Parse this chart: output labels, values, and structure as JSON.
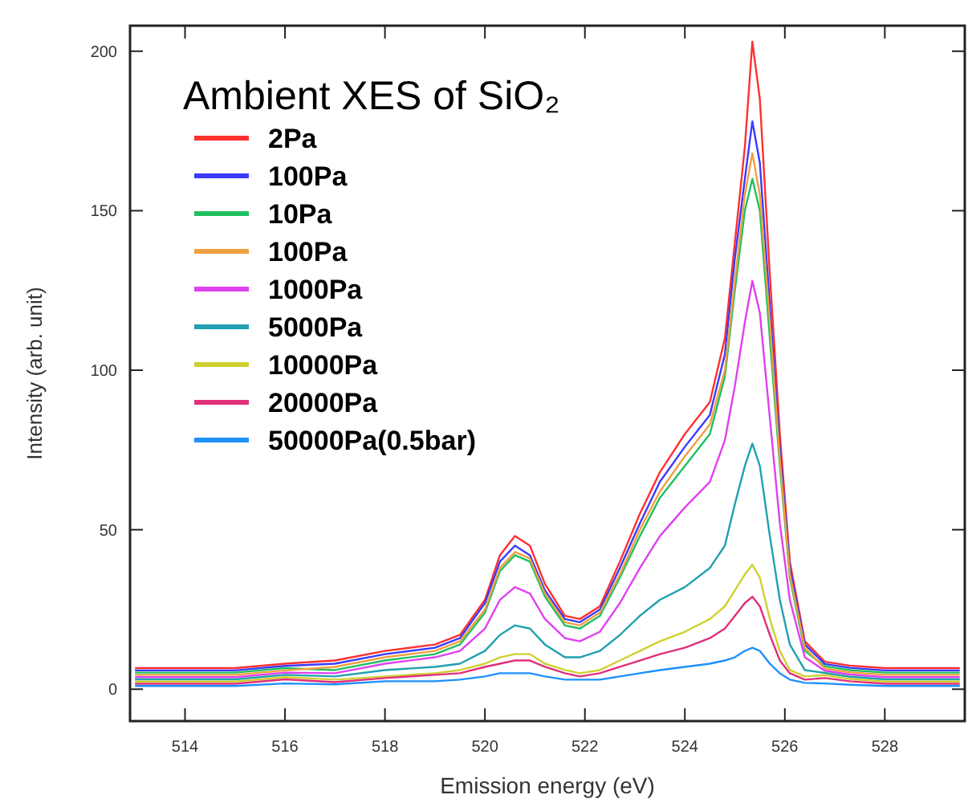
{
  "chart_data": {
    "type": "line",
    "title": "Ambient XES of SiO₂",
    "xlabel": "Emission energy (eV)",
    "ylabel": "Intensity (arb. unit)",
    "x": [
      513,
      514,
      515,
      516,
      517,
      518,
      519,
      519.5,
      520,
      520.3,
      520.6,
      520.9,
      521.2,
      521.6,
      521.9,
      522.3,
      522.7,
      523.1,
      523.5,
      524,
      524.5,
      524.8,
      525,
      525.2,
      525.35,
      525.5,
      525.7,
      525.9,
      526.1,
      526.4,
      526.8,
      527.3,
      528,
      529.5
    ],
    "xlim": [
      512.9,
      529.6
    ],
    "xticks": [
      514,
      516,
      518,
      520,
      522,
      524,
      526,
      528
    ],
    "ylim": [
      -10,
      208
    ],
    "yticks": [
      0,
      50,
      100,
      150,
      200
    ],
    "legend": "top left",
    "grid": false,
    "marker": "none",
    "line_style": "solid",
    "series": [
      {
        "name": "2Pa",
        "color": "#ff3030",
        "values": [
          6.6,
          6.6,
          6.6,
          8,
          9,
          12,
          14,
          17,
          28,
          42,
          48,
          45,
          33,
          23,
          22,
          26,
          40,
          55,
          68,
          80,
          90,
          110,
          140,
          170,
          203,
          185,
          130,
          80,
          40,
          15,
          8.6,
          7.4,
          6.6,
          6.6
        ]
      },
      {
        "name": "100Pa",
        "color": "#3a3aff",
        "values": [
          5.9,
          5.9,
          5.9,
          7.3,
          8,
          11,
          13,
          16,
          27,
          40,
          45,
          42,
          31,
          22,
          21,
          25,
          38,
          52,
          65,
          76,
          86,
          105,
          135,
          160,
          178,
          165,
          120,
          75,
          38,
          14,
          7.9,
          6.7,
          5.9,
          5.9
        ]
      },
      {
        "name": "10Pa",
        "color": "#20c060",
        "values": [
          5.2,
          5.2,
          5.2,
          6.6,
          6,
          9,
          11,
          14,
          24,
          37,
          42,
          40,
          29,
          20,
          19,
          23,
          35,
          48,
          60,
          70,
          80,
          98,
          125,
          150,
          160,
          150,
          110,
          70,
          35,
          12,
          7.2,
          6.0,
          5.2,
          5.2
        ]
      },
      {
        "name": "100Pa",
        "color": "#f0a040",
        "values": [
          4.5,
          4.5,
          4.5,
          5.9,
          7,
          10,
          12,
          15,
          25,
          38,
          43,
          41,
          30,
          21,
          20,
          24,
          36,
          50,
          62,
          73,
          83,
          100,
          128,
          155,
          168,
          155,
          115,
          72,
          36,
          13,
          6.5,
          5.3,
          4.5,
          4.5
        ]
      },
      {
        "name": "1000Pa",
        "color": "#e040f0",
        "values": [
          3.8,
          3.8,
          3.8,
          5.2,
          5,
          8,
          10,
          12,
          19,
          28,
          32,
          30,
          22,
          16,
          15,
          18,
          27,
          38,
          48,
          57,
          65,
          78,
          95,
          115,
          128,
          118,
          85,
          52,
          28,
          10,
          5.8,
          4.6,
          3.8,
          3.8
        ]
      },
      {
        "name": "5000Pa",
        "color": "#20a0b0",
        "values": [
          3.1,
          3.1,
          3.1,
          4.5,
          4,
          6,
          7,
          8,
          12,
          17,
          20,
          19,
          14,
          10,
          10,
          12,
          17,
          23,
          28,
          32,
          38,
          45,
          58,
          70,
          77,
          70,
          48,
          28,
          14,
          6,
          5.1,
          3.9,
          3.1,
          3.1
        ]
      },
      {
        "name": "10000Pa",
        "color": "#d0d030",
        "values": [
          2.4,
          2.4,
          2.4,
          3.8,
          3,
          4,
          5,
          6,
          8,
          10,
          11,
          11,
          8,
          6,
          5,
          6,
          9,
          12,
          15,
          18,
          22,
          26,
          31,
          36,
          39,
          35,
          22,
          12,
          6,
          4,
          4.4,
          3.2,
          2.4,
          2.4
        ]
      },
      {
        "name": "20000Pa",
        "color": "#e0307a",
        "values": [
          1.7,
          1.7,
          1.7,
          3.1,
          2.2,
          3.5,
          4.5,
          5,
          7,
          8,
          9,
          9,
          7,
          5,
          4,
          5,
          7,
          9,
          11,
          13,
          16,
          19,
          23,
          27,
          29,
          26,
          17,
          9,
          5,
          3,
          3.5,
          2.5,
          1.7,
          1.7
        ]
      },
      {
        "name": "50000Pa(0.5bar)",
        "color": "#1e90ff",
        "values": [
          1.0,
          1.0,
          1.0,
          1.8,
          1.5,
          2.5,
          2.5,
          3,
          4,
          5,
          5,
          5,
          4,
          3,
          3,
          3,
          4,
          5,
          6,
          7,
          8,
          9,
          10,
          12,
          13,
          12,
          8,
          5,
          3,
          2,
          1.8,
          1.4,
          1.0,
          1.0
        ]
      }
    ]
  }
}
